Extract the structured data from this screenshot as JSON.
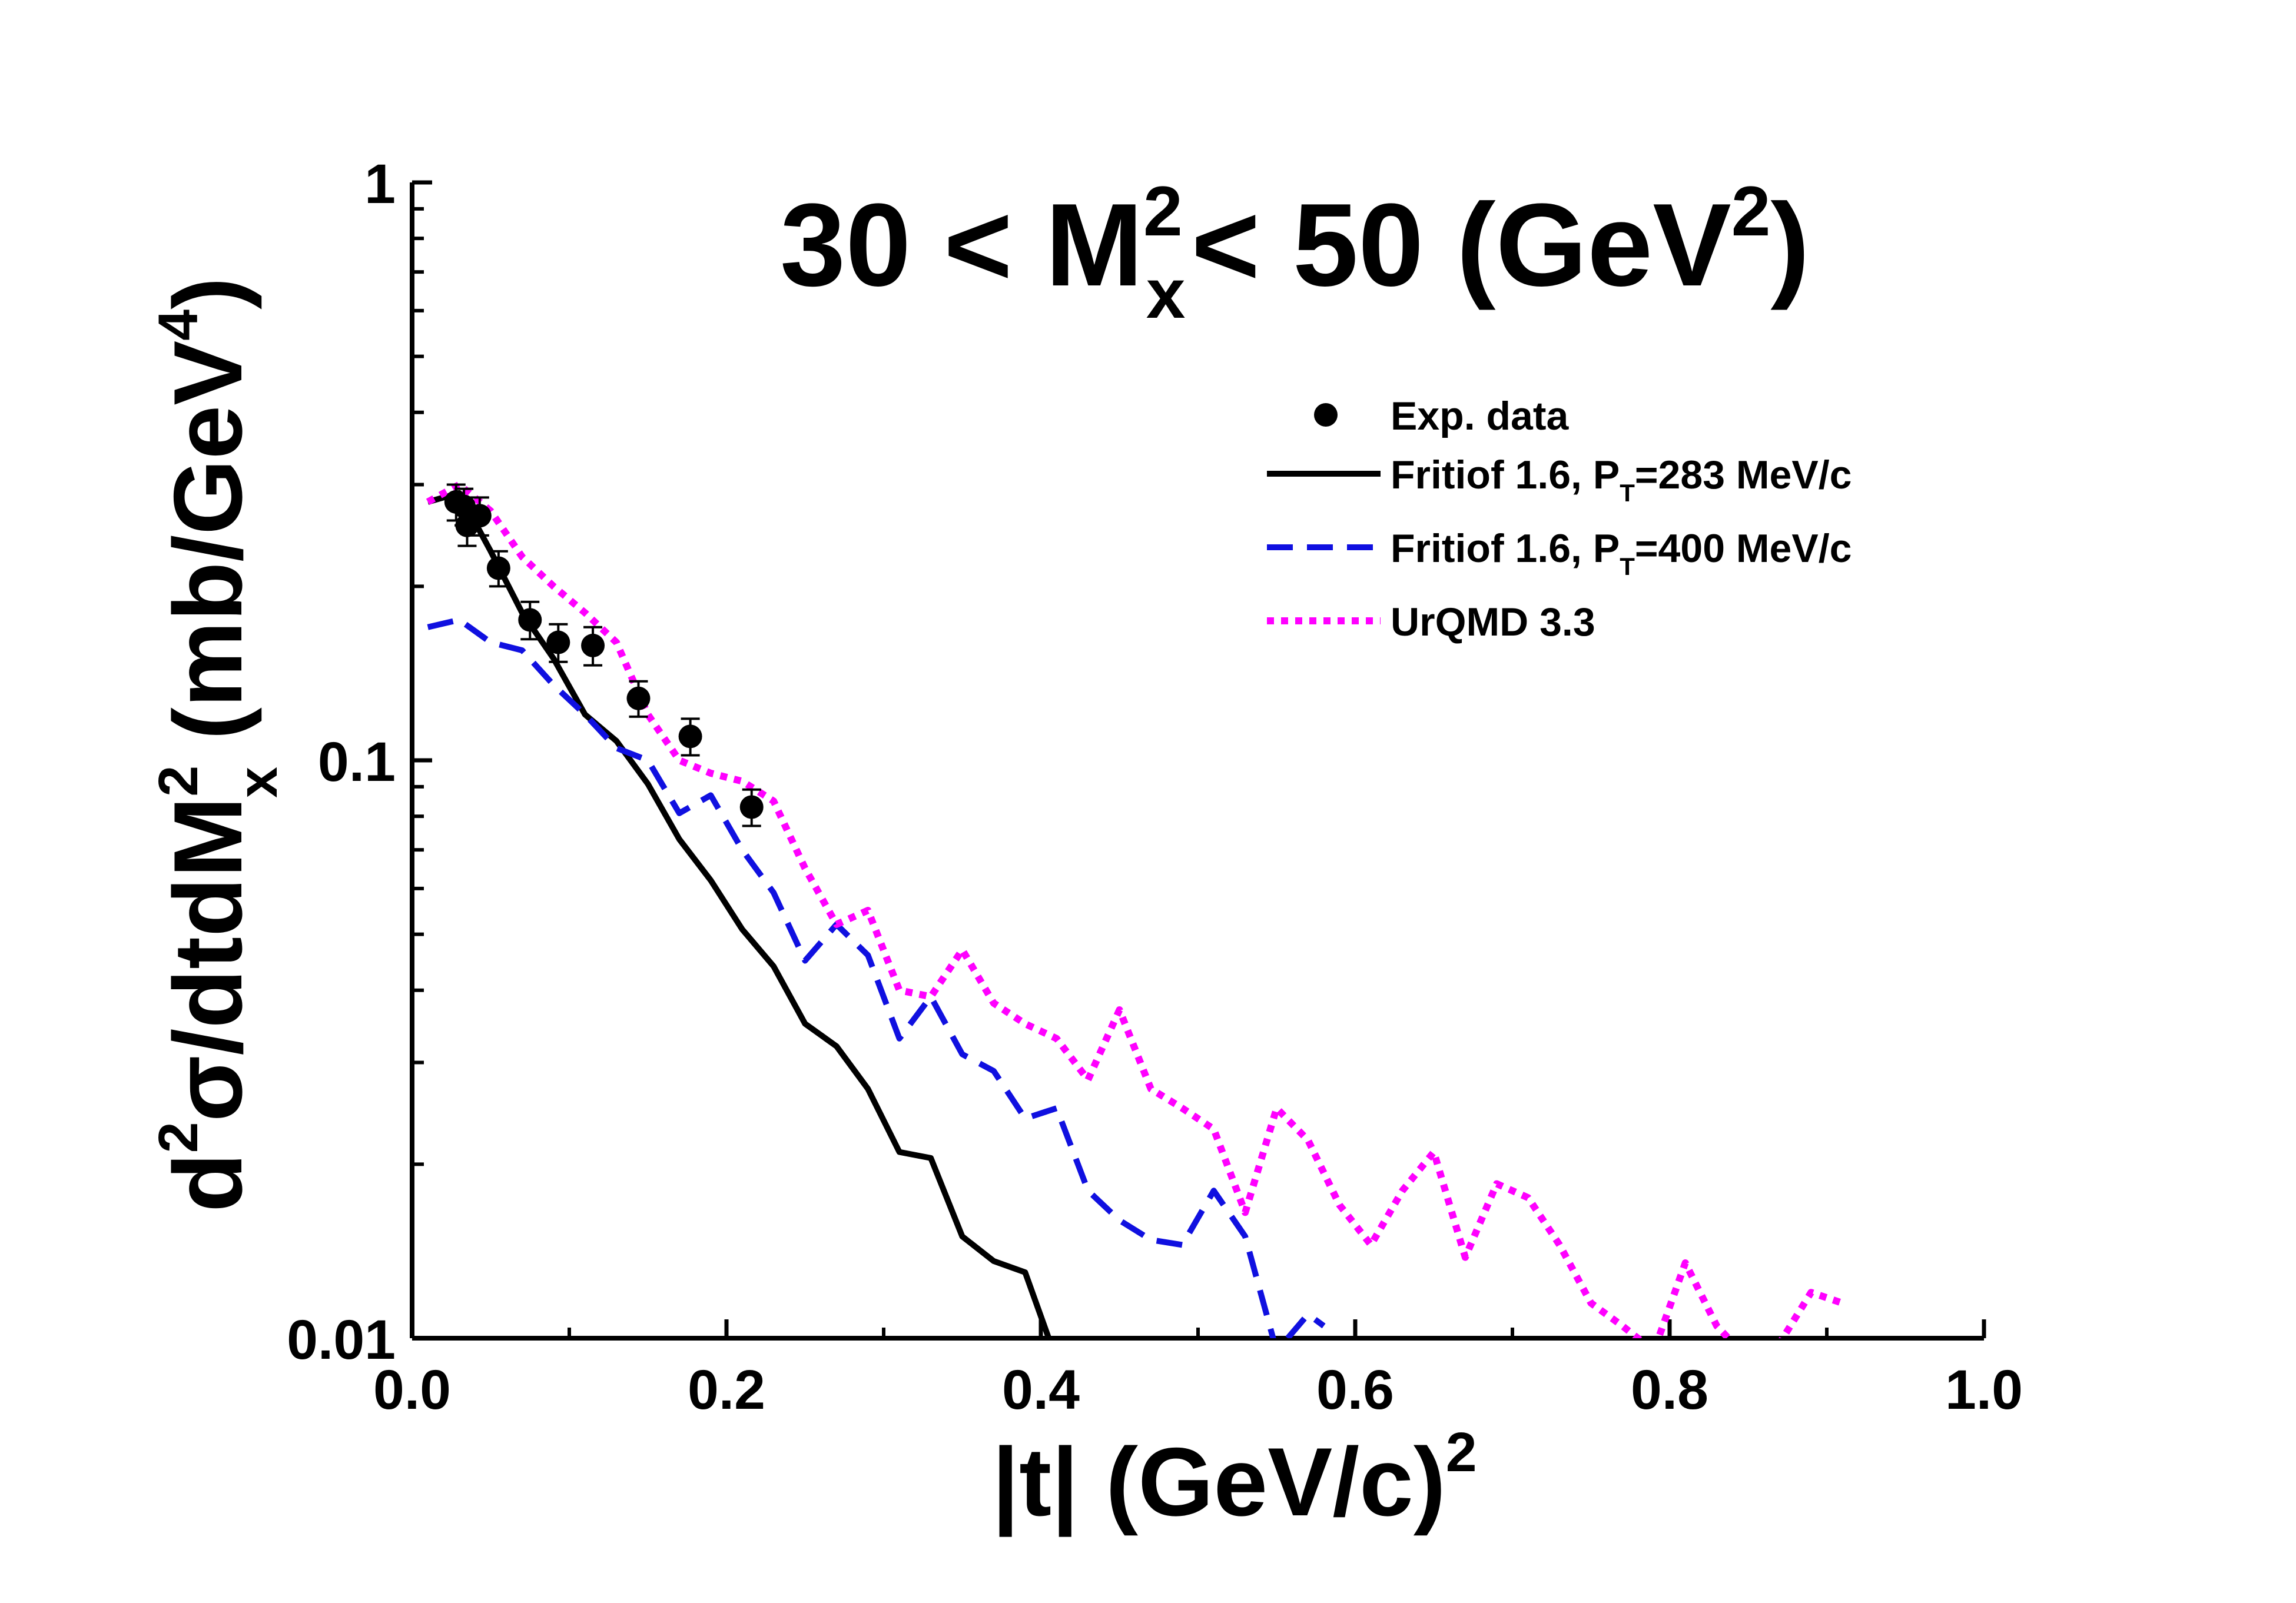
{
  "chart_data": {
    "type": "line",
    "title": {
      "prefix": "30  < M",
      "sup1": "2",
      "sub1": "x",
      "middle": "< 50 (GeV",
      "sup2": "2",
      "suffix": ")"
    },
    "xlabel": {
      "main": "|t| (GeV/c)",
      "sup": "2"
    },
    "ylabel": {
      "p1": "d",
      "p1_sup": "2",
      "p2": "σ/dtdM",
      "p2_sup": "2",
      "p2_sub": "x",
      "p3": "  (mb/GeV",
      "p3_sup": "4",
      "p4": ")"
    },
    "xlim": [
      0.0,
      1.0
    ],
    "ylim": [
      0.01,
      1
    ],
    "yscale": "log",
    "x_ticks": [
      "0.0",
      "0.2",
      "0.4",
      "0.6",
      "0.8",
      "1.0"
    ],
    "y_ticks": [
      "0.01",
      "0.1",
      "1"
    ],
    "legend_position": "top-right",
    "series": [
      {
        "name": "Exp. data",
        "kind": "points",
        "color": "#000000",
        "x": [
          0.028,
          0.033,
          0.035,
          0.043,
          0.055,
          0.075,
          0.093,
          0.115,
          0.144,
          0.177,
          0.216
        ],
        "y": [
          0.28,
          0.275,
          0.255,
          0.265,
          0.215,
          0.175,
          0.16,
          0.158,
          0.128,
          0.11,
          0.083
        ],
        "yerr": [
          0.02,
          0.02,
          0.02,
          0.02,
          0.015,
          0.013,
          0.012,
          0.012,
          0.009,
          0.008,
          0.006
        ]
      },
      {
        "name": "Fritiof 1.6, P",
        "name_sub": "T",
        "name_suffix": "=283 MeV/c",
        "kind": "line",
        "dash": "solid",
        "color": "#000000",
        "x": [
          0.01,
          0.03,
          0.05,
          0.07,
          0.09,
          0.11,
          0.13,
          0.15,
          0.17,
          0.19,
          0.21,
          0.23,
          0.25,
          0.27,
          0.29,
          0.31,
          0.33,
          0.35,
          0.37,
          0.39,
          0.405
        ],
        "y": [
          0.28,
          0.29,
          0.23,
          0.18,
          0.15,
          0.12,
          0.108,
          0.091,
          0.073,
          0.062,
          0.051,
          0.044,
          0.035,
          0.032,
          0.027,
          0.021,
          0.0205,
          0.015,
          0.0136,
          0.013,
          0.01
        ]
      },
      {
        "name": "Fritiof 1.6, P",
        "name_sub": "T",
        "name_suffix": "=400 MeV/c",
        "kind": "line",
        "dash": "dashed",
        "color": "#1010e0",
        "x": [
          0.01,
          0.03,
          0.05,
          0.07,
          0.09,
          0.11,
          0.13,
          0.15,
          0.17,
          0.19,
          0.21,
          0.23,
          0.25,
          0.27,
          0.29,
          0.31,
          0.33,
          0.35,
          0.37,
          0.39,
          0.41,
          0.43,
          0.45,
          0.47,
          0.49,
          0.51,
          0.53,
          0.55,
          0.57,
          0.58
        ],
        "y": [
          0.17,
          0.175,
          0.16,
          0.155,
          0.135,
          0.12,
          0.105,
          0.1,
          0.081,
          0.087,
          0.07,
          0.059,
          0.045,
          0.052,
          0.046,
          0.033,
          0.039,
          0.031,
          0.029,
          0.024,
          0.025,
          0.018,
          0.016,
          0.0148,
          0.0145,
          0.018,
          0.015,
          0.0095,
          0.011,
          0.0105
        ]
      },
      {
        "name": "UrQMD 3.3",
        "kind": "line",
        "dash": "dotted",
        "color": "#ff00ff",
        "x": [
          0.01,
          0.03,
          0.05,
          0.07,
          0.09,
          0.11,
          0.13,
          0.15,
          0.17,
          0.19,
          0.21,
          0.23,
          0.25,
          0.27,
          0.29,
          0.31,
          0.33,
          0.35,
          0.37,
          0.39,
          0.41,
          0.43,
          0.45,
          0.47,
          0.49,
          0.51,
          0.53,
          0.55,
          0.57,
          0.59,
          0.61,
          0.63,
          0.65,
          0.67,
          0.69,
          0.71,
          0.73,
          0.75,
          0.77,
          0.79,
          0.81,
          0.83,
          0.85,
          0.87,
          0.89,
          0.91
        ],
        "y": [
          0.28,
          0.3,
          0.27,
          0.225,
          0.2,
          0.18,
          0.16,
          0.12,
          0.1,
          0.095,
          0.092,
          0.085,
          0.065,
          0.052,
          0.055,
          0.04,
          0.039,
          0.047,
          0.038,
          0.035,
          0.033,
          0.028,
          0.037,
          0.027,
          0.025,
          0.023,
          0.0165,
          0.025,
          0.022,
          0.017,
          0.0145,
          0.018,
          0.021,
          0.0138,
          0.0185,
          0.0175,
          0.0145,
          0.0115,
          0.0105,
          0.0095,
          0.0135,
          0.0105,
          0.0092,
          0.0098,
          0.012,
          0.0115
        ]
      }
    ]
  }
}
